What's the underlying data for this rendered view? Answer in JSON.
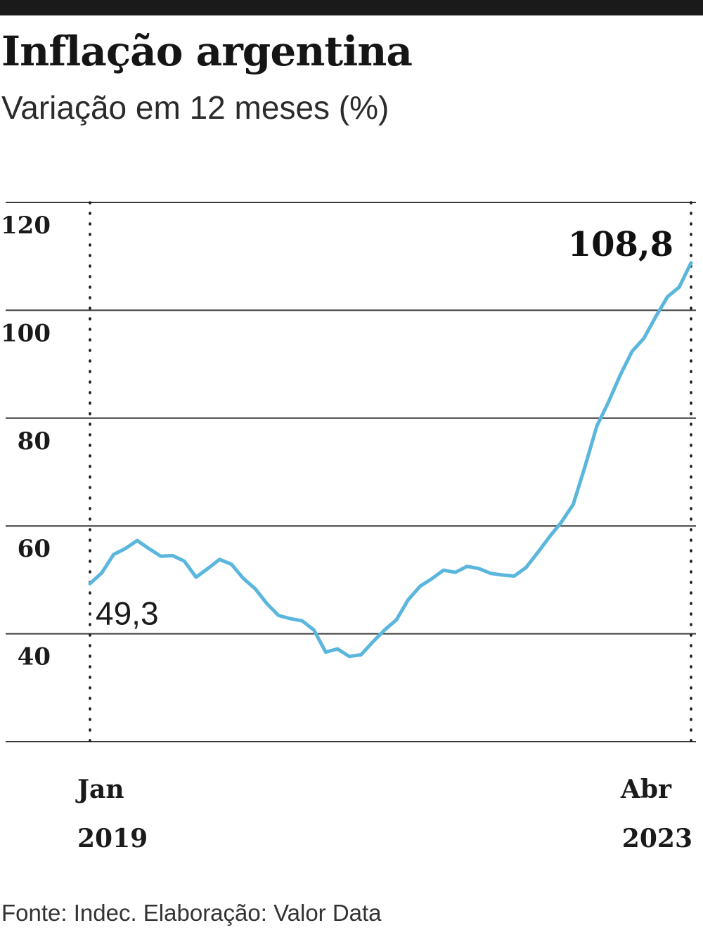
{
  "header": {
    "title": "Inflação argentina",
    "subtitle": "Variação em 12 meses (%)"
  },
  "footer": {
    "source": "Fonte: Indec. Elaboração: Valor Data"
  },
  "colors": {
    "line": "#5bb6dd",
    "grid": "#3a3a3a",
    "text": "#1a1a1a",
    "topbar": "#1a1a1a"
  },
  "chart_data": {
    "type": "line",
    "title": "Inflação argentina",
    "subtitle": "Variação em 12 meses (%)",
    "xlabel": "",
    "ylabel": "",
    "ylim": [
      20,
      120
    ],
    "yticks": [
      40,
      60,
      80,
      100,
      120
    ],
    "ytick_labels": [
      "40",
      "60",
      "80",
      "100",
      "120"
    ],
    "grid": true,
    "x_start_label": [
      "Jan",
      "2019"
    ],
    "x_end_label": [
      "Abr",
      "2023"
    ],
    "annotations": [
      {
        "text": "49,3",
        "point": "first"
      },
      {
        "text": "108,8",
        "point": "last"
      }
    ],
    "series": [
      {
        "x": [
          "2019-01",
          "2019-02",
          "2019-03",
          "2019-04",
          "2019-05",
          "2019-06",
          "2019-07",
          "2019-08",
          "2019-09",
          "2019-10",
          "2019-11",
          "2019-12",
          "2020-01",
          "2020-02",
          "2020-03",
          "2020-04",
          "2020-05",
          "2020-06",
          "2020-07",
          "2020-08",
          "2020-09",
          "2020-10",
          "2020-11",
          "2020-12",
          "2021-01",
          "2021-02",
          "2021-03",
          "2021-04",
          "2021-05",
          "2021-06",
          "2021-07",
          "2021-08",
          "2021-09",
          "2021-10",
          "2021-11",
          "2021-12",
          "2022-01",
          "2022-02",
          "2022-03",
          "2022-04",
          "2022-05",
          "2022-06",
          "2022-07",
          "2022-08",
          "2022-09",
          "2022-10",
          "2022-11",
          "2022-12",
          "2023-01",
          "2023-02",
          "2023-03",
          "2023-04"
        ],
        "values": [
          49.3,
          51.3,
          54.7,
          55.8,
          57.3,
          55.8,
          54.4,
          54.5,
          53.5,
          50.5,
          52.1,
          53.8,
          52.9,
          50.3,
          48.4,
          45.6,
          43.4,
          42.8,
          42.4,
          40.7,
          36.6,
          37.2,
          35.8,
          36.1,
          38.5,
          40.7,
          42.6,
          46.3,
          48.8,
          50.2,
          51.8,
          51.4,
          52.5,
          52.1,
          51.2,
          50.9,
          50.7,
          52.3,
          55.1,
          58.0,
          60.7,
          64.0,
          71.0,
          78.5,
          83.0,
          88.0,
          92.4,
          94.8,
          98.8,
          102.5,
          104.3,
          108.8
        ]
      }
    ]
  }
}
